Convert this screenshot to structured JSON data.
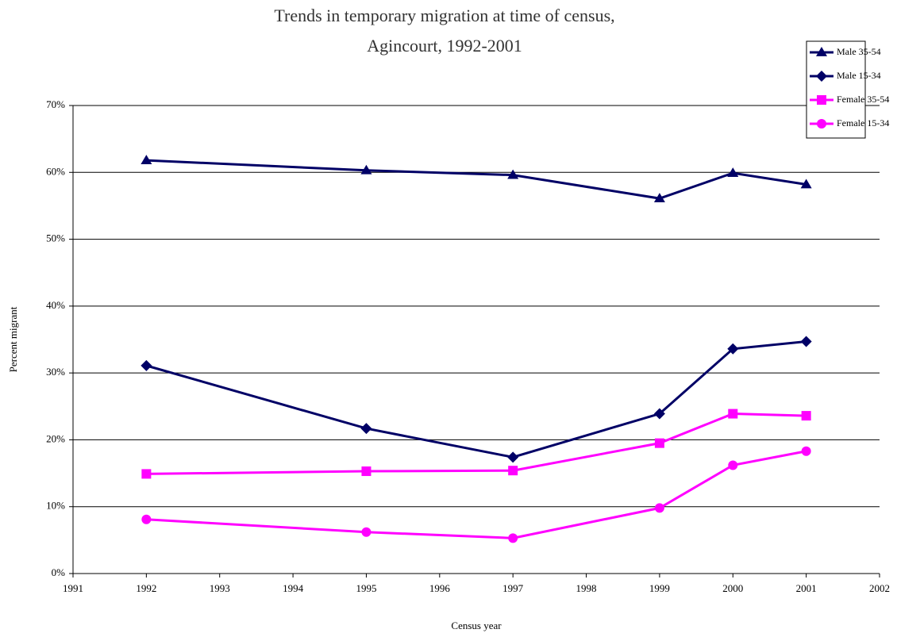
{
  "chart_data": {
    "type": "line",
    "title": [
      "Trends in temporary migration at time of census,",
      "Agincourt, 1992-2001"
    ],
    "x_label": "Census year",
    "y_label": "Percent migrant",
    "x": [
      1992,
      1995,
      1997,
      1999,
      2000,
      2001
    ],
    "series": [
      {
        "name": "Male 35-54",
        "color": "#000066",
        "marker": "triangle",
        "values": [
          61.8,
          60.3,
          59.6,
          56.1,
          59.9,
          58.2
        ]
      },
      {
        "name": "Male 15-34",
        "color": "#000066",
        "marker": "diamond",
        "values": [
          31.1,
          21.7,
          17.4,
          23.9,
          33.6,
          34.7
        ]
      },
      {
        "name": "Female 35-54",
        "color": "#ff00ff",
        "marker": "square",
        "values": [
          14.9,
          15.3,
          15.4,
          19.5,
          23.9,
          23.6
        ]
      },
      {
        "name": "Female 15-34",
        "color": "#ff00ff",
        "marker": "circle",
        "values": [
          8.1,
          6.2,
          5.3,
          9.8,
          16.2,
          18.3
        ]
      }
    ],
    "xlim": [
      1991,
      2002
    ],
    "xticks": [
      1991,
      1992,
      1993,
      1994,
      1995,
      1996,
      1997,
      1998,
      1999,
      2000,
      2001,
      2002
    ],
    "ylim": [
      0,
      70
    ],
    "yticks": [
      {
        "value": 0,
        "label": "0%"
      },
      {
        "value": 10,
        "label": "10%"
      },
      {
        "value": 20,
        "label": "20%"
      },
      {
        "value": 30,
        "label": "30%"
      },
      {
        "value": 40,
        "label": "40%"
      },
      {
        "value": 50,
        "label": "50%"
      },
      {
        "value": 60,
        "label": "60%"
      },
      {
        "value": 70,
        "label": "70%"
      }
    ],
    "grid": true,
    "legend": "top-right"
  }
}
